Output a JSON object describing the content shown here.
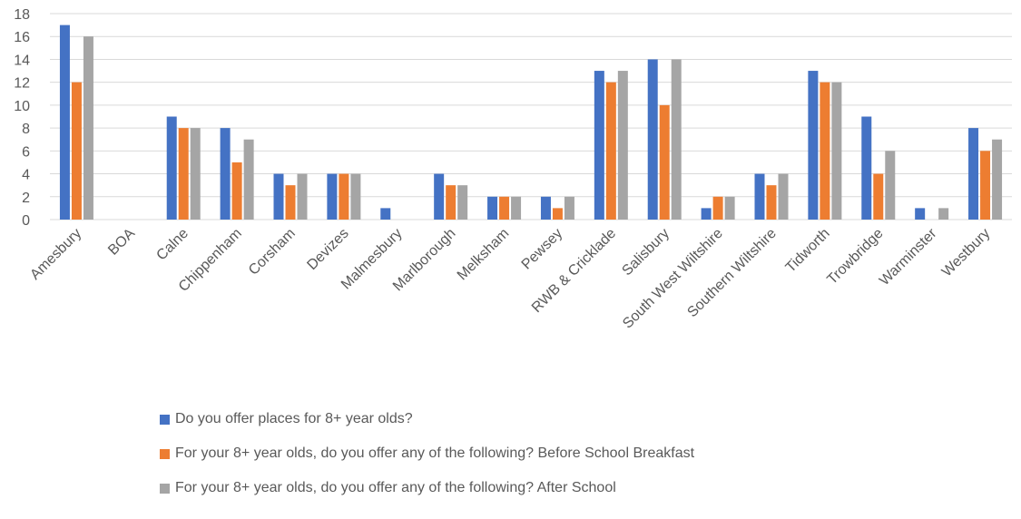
{
  "chart_data": {
    "type": "bar",
    "categories": [
      "Amesbury",
      "BOA",
      "Calne",
      "Chippenham",
      "Corsham",
      "Devizes",
      "Malmesbury",
      "Marlborough",
      "Melksham",
      "Pewsey",
      "RWB & Cricklade",
      "Salisbury",
      "South West Wiltshire",
      "Southern Wiltshire",
      "Tidworth",
      "Trowbridge",
      "Warminster",
      "Westbury"
    ],
    "series": [
      {
        "name": "Do you offer places for 8+ year olds?",
        "color": "#4472C4",
        "values": [
          17,
          0,
          9,
          8,
          4,
          4,
          1,
          4,
          2,
          2,
          13,
          14,
          1,
          4,
          13,
          9,
          1,
          8
        ]
      },
      {
        "name": "For your 8+ year olds, do you offer any of the following?  Before School Breakfast",
        "color": "#ED7D31",
        "values": [
          12,
          0,
          8,
          5,
          3,
          4,
          0,
          3,
          2,
          1,
          12,
          10,
          2,
          3,
          12,
          4,
          0,
          6
        ]
      },
      {
        "name": "For your 8+ year olds, do you offer any of the following?  After School",
        "color": "#A5A5A5",
        "values": [
          16,
          0,
          8,
          7,
          4,
          4,
          0,
          3,
          2,
          2,
          13,
          14,
          2,
          4,
          12,
          6,
          1,
          7
        ]
      }
    ],
    "y_ticks": [
      "0",
      "2",
      "4",
      "6",
      "8",
      "10",
      "12",
      "14",
      "16",
      "18"
    ],
    "ylim": [
      0,
      18
    ],
    "grid": true,
    "legend_position": "bottom"
  }
}
